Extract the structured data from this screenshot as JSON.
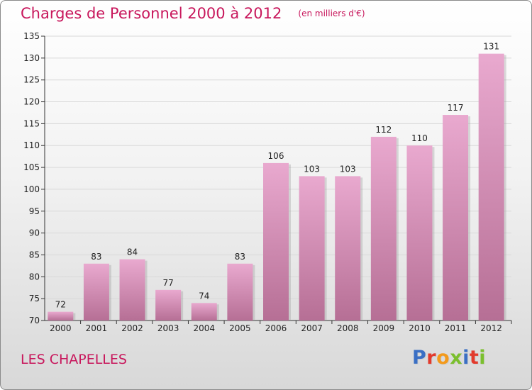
{
  "title": "Charges de Personnel 2000 à 2012",
  "subtitle": "(en milliers d'€)",
  "location": "LES CHAPELLES",
  "logo": {
    "text": "Proxiti",
    "letter_colors": [
      "#3a6fc4",
      "#e23a2c",
      "#f39a1c",
      "#7bbf2e",
      "#3a6fc4",
      "#e23a2c",
      "#7bbf2e"
    ]
  },
  "colors": {
    "title": "#c8175c",
    "bar_top": "#e9a9cf",
    "bar_bottom": "#b66f95",
    "grid": "#d9d9d9",
    "axis": "#333333"
  },
  "chart_data": {
    "type": "bar",
    "categories": [
      "2000",
      "2001",
      "2002",
      "2003",
      "2004",
      "2005",
      "2006",
      "2007",
      "2008",
      "2009",
      "2010",
      "2011",
      "2012"
    ],
    "values": [
      72,
      83,
      84,
      77,
      74,
      83,
      106,
      103,
      103,
      112,
      110,
      117,
      131
    ],
    "data_labels": [
      "72",
      "83",
      "84",
      "77",
      "74",
      "83",
      "106",
      "103",
      "103",
      "112",
      "110",
      "117",
      "131"
    ],
    "yticks": [
      70,
      75,
      80,
      85,
      90,
      95,
      100,
      105,
      110,
      115,
      120,
      125,
      130,
      135
    ],
    "ylim": [
      70,
      135
    ],
    "grid": true,
    "legend": "none"
  }
}
